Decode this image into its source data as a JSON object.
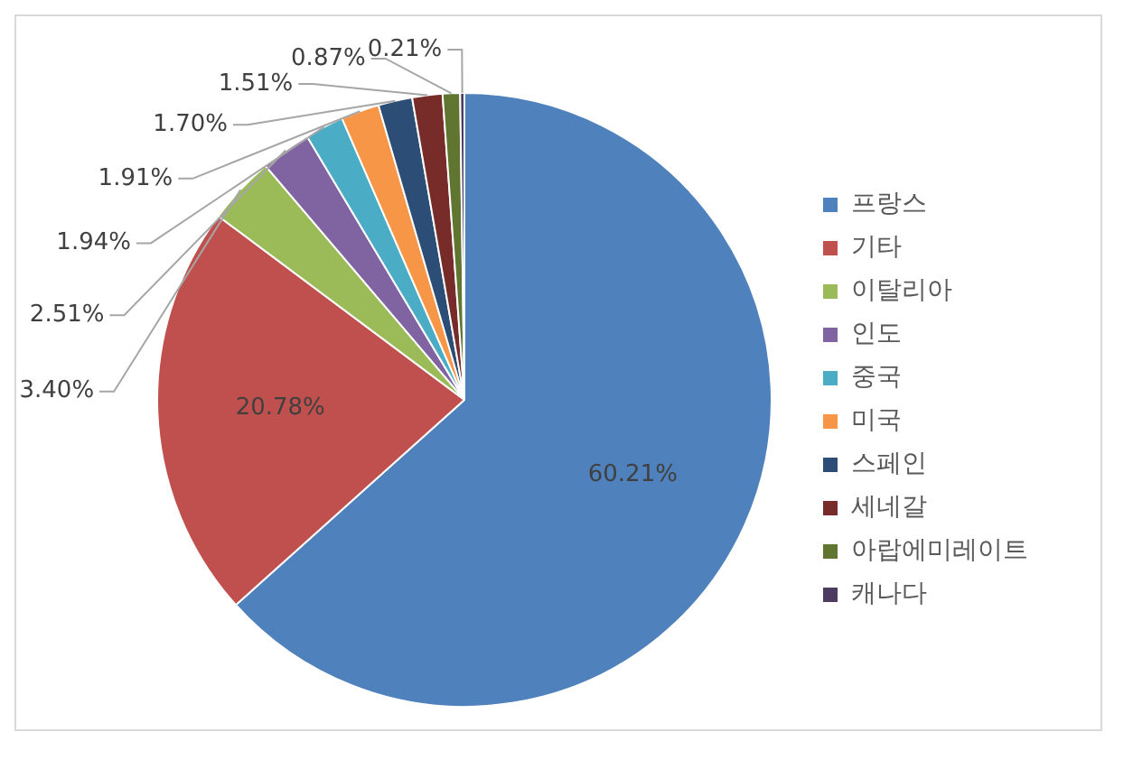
{
  "chart_data": {
    "type": "pie",
    "categories": [
      "프랑스",
      "기타",
      "이탈리아",
      "인도",
      "중국",
      "미국",
      "스페인",
      "세네갈",
      "아랍에미레이트",
      "캐나다"
    ],
    "values": [
      60.21,
      20.78,
      3.4,
      2.51,
      1.94,
      1.91,
      1.7,
      1.51,
      0.87,
      0.21
    ],
    "value_labels": [
      "60.21%",
      "20.78%",
      "3.40%",
      "2.51%",
      "1.94%",
      "1.91%",
      "1.70%",
      "1.51%",
      "0.87%",
      "0.21%"
    ],
    "colors": [
      "#4f81bd",
      "#c0504d",
      "#9bbb59",
      "#8064a2",
      "#4bacc6",
      "#f79646",
      "#2c4d75",
      "#772c2a",
      "#5f7530",
      "#4d3b62"
    ],
    "legend": "right"
  }
}
